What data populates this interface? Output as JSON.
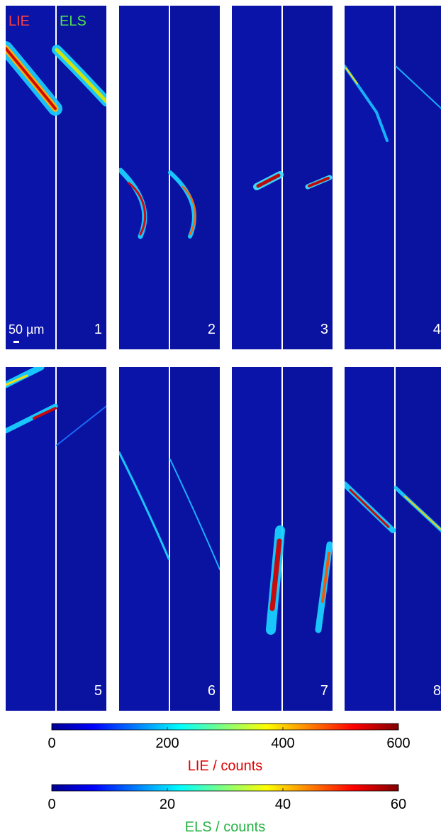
{
  "labels": {
    "lie": "LIE",
    "els": "ELS",
    "scale_bar": "50 µm"
  },
  "panels": [
    "1",
    "2",
    "3",
    "4",
    "5",
    "6",
    "7",
    "8"
  ],
  "colorbars": [
    {
      "label": "LIE / counts",
      "lim": [
        0,
        600
      ],
      "ticks": [
        0,
        200,
        400,
        600
      ]
    },
    {
      "label": "ELS / counts",
      "lim": [
        0,
        60
      ],
      "ticks": [
        0,
        20,
        40,
        60
      ]
    }
  ]
}
